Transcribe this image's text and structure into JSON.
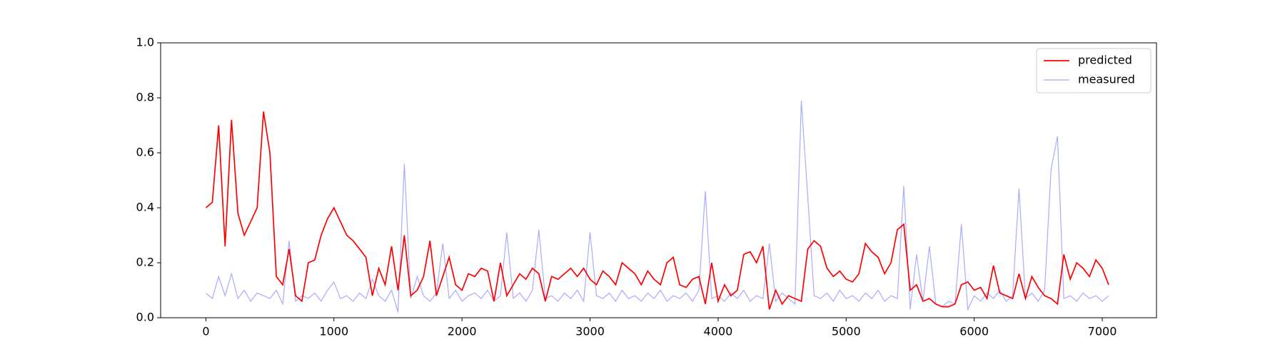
{
  "chart_data": {
    "type": "line",
    "x": [
      0,
      50,
      100,
      150,
      200,
      250,
      300,
      350,
      400,
      450,
      500,
      550,
      600,
      650,
      700,
      750,
      800,
      850,
      900,
      950,
      1000,
      1050,
      1100,
      1150,
      1200,
      1250,
      1300,
      1350,
      1400,
      1450,
      1500,
      1550,
      1600,
      1650,
      1700,
      1750,
      1800,
      1850,
      1900,
      1950,
      2000,
      2050,
      2100,
      2150,
      2200,
      2250,
      2300,
      2350,
      2400,
      2450,
      2500,
      2550,
      2600,
      2650,
      2700,
      2750,
      2800,
      2850,
      2900,
      2950,
      3000,
      3050,
      3100,
      3150,
      3200,
      3250,
      3300,
      3350,
      3400,
      3450,
      3500,
      3550,
      3600,
      3650,
      3700,
      3750,
      3800,
      3850,
      3900,
      3950,
      4000,
      4050,
      4100,
      4150,
      4200,
      4250,
      4300,
      4350,
      4400,
      4450,
      4500,
      4550,
      4600,
      4650,
      4700,
      4750,
      4800,
      4850,
      4900,
      4950,
      5000,
      5050,
      5100,
      5150,
      5200,
      5250,
      5300,
      5350,
      5400,
      5450,
      5500,
      5550,
      5600,
      5650,
      5700,
      5750,
      5800,
      5850,
      5900,
      5950,
      6000,
      6050,
      6100,
      6150,
      6200,
      6250,
      6300,
      6350,
      6400,
      6450,
      6500,
      6550,
      6600,
      6650,
      6700,
      6750,
      6800,
      6850,
      6900,
      6950,
      7000,
      7050
    ],
    "series": [
      {
        "name": "predicted",
        "color": "#ff0000",
        "values": [
          0.4,
          0.42,
          0.7,
          0.26,
          0.72,
          0.38,
          0.3,
          0.35,
          0.4,
          0.75,
          0.6,
          0.15,
          0.12,
          0.25,
          0.08,
          0.06,
          0.2,
          0.21,
          0.3,
          0.36,
          0.4,
          0.35,
          0.3,
          0.28,
          0.25,
          0.22,
          0.08,
          0.18,
          0.12,
          0.26,
          0.1,
          0.3,
          0.08,
          0.1,
          0.15,
          0.28,
          0.08,
          0.15,
          0.22,
          0.12,
          0.1,
          0.16,
          0.15,
          0.18,
          0.17,
          0.06,
          0.2,
          0.08,
          0.12,
          0.16,
          0.14,
          0.18,
          0.16,
          0.06,
          0.15,
          0.14,
          0.16,
          0.18,
          0.15,
          0.18,
          0.14,
          0.12,
          0.17,
          0.15,
          0.12,
          0.2,
          0.18,
          0.16,
          0.12,
          0.17,
          0.14,
          0.12,
          0.2,
          0.22,
          0.12,
          0.11,
          0.14,
          0.15,
          0.05,
          0.2,
          0.06,
          0.12,
          0.08,
          0.1,
          0.23,
          0.24,
          0.2,
          0.26,
          0.03,
          0.1,
          0.05,
          0.08,
          0.07,
          0.06,
          0.25,
          0.28,
          0.26,
          0.18,
          0.15,
          0.17,
          0.14,
          0.13,
          0.16,
          0.27,
          0.24,
          0.22,
          0.16,
          0.2,
          0.32,
          0.34,
          0.1,
          0.12,
          0.06,
          0.07,
          0.05,
          0.04,
          0.04,
          0.05,
          0.12,
          0.13,
          0.1,
          0.11,
          0.07,
          0.19,
          0.09,
          0.08,
          0.07,
          0.16,
          0.07,
          0.15,
          0.11,
          0.08,
          0.07,
          0.05,
          0.23,
          0.14,
          0.2,
          0.18,
          0.15,
          0.21,
          0.18,
          0.12
        ]
      },
      {
        "name": "measured",
        "color": "#aaaaff",
        "values": [
          0.09,
          0.07,
          0.15,
          0.08,
          0.16,
          0.07,
          0.1,
          0.06,
          0.09,
          0.08,
          0.07,
          0.1,
          0.05,
          0.28,
          0.06,
          0.08,
          0.07,
          0.09,
          0.06,
          0.1,
          0.13,
          0.07,
          0.08,
          0.06,
          0.09,
          0.07,
          0.14,
          0.08,
          0.06,
          0.1,
          0.02,
          0.56,
          0.07,
          0.15,
          0.08,
          0.06,
          0.09,
          0.27,
          0.07,
          0.1,
          0.06,
          0.08,
          0.09,
          0.07,
          0.1,
          0.06,
          0.08,
          0.31,
          0.07,
          0.09,
          0.06,
          0.1,
          0.32,
          0.07,
          0.08,
          0.06,
          0.09,
          0.07,
          0.1,
          0.06,
          0.31,
          0.08,
          0.07,
          0.09,
          0.06,
          0.1,
          0.07,
          0.08,
          0.06,
          0.09,
          0.07,
          0.1,
          0.06,
          0.08,
          0.07,
          0.09,
          0.06,
          0.1,
          0.46,
          0.07,
          0.08,
          0.06,
          0.09,
          0.07,
          0.1,
          0.06,
          0.08,
          0.07,
          0.27,
          0.06,
          0.09,
          0.07,
          0.05,
          0.79,
          0.44,
          0.08,
          0.07,
          0.09,
          0.06,
          0.1,
          0.07,
          0.08,
          0.06,
          0.09,
          0.07,
          0.1,
          0.06,
          0.08,
          0.07,
          0.48,
          0.03,
          0.23,
          0.06,
          0.26,
          0.05,
          0.04,
          0.06,
          0.05,
          0.34,
          0.03,
          0.08,
          0.06,
          0.09,
          0.07,
          0.1,
          0.06,
          0.08,
          0.47,
          0.07,
          0.09,
          0.06,
          0.1,
          0.54,
          0.66,
          0.07,
          0.08,
          0.06,
          0.09,
          0.07,
          0.08,
          0.06,
          0.08
        ]
      }
    ],
    "xlim": [
      -353.5,
      7423.5
    ],
    "xticks": [
      0,
      1000,
      2000,
      3000,
      4000,
      5000,
      6000,
      7000
    ],
    "ylim": [
      0,
      1
    ],
    "yticks": [
      {
        "value": 0,
        "label": "0.0"
      },
      0.2,
      0.4,
      0.6,
      0.8,
      {
        "value": 1,
        "label": "1.0"
      }
    ],
    "legend": "upper right"
  }
}
